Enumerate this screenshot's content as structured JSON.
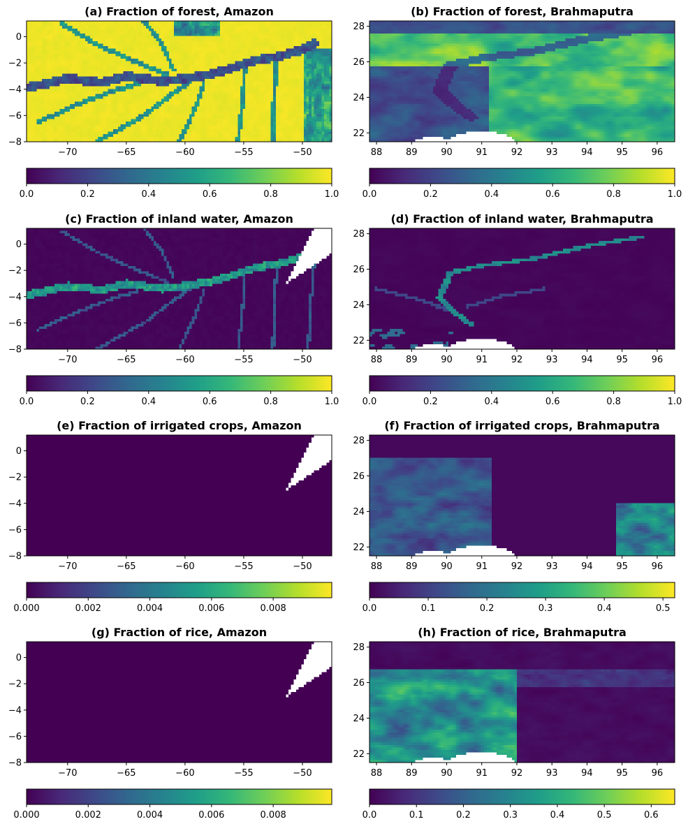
{
  "colors": {
    "viridis": [
      "#440154",
      "#482878",
      "#3e4989",
      "#31688e",
      "#26828e",
      "#1f9e89",
      "#35b779",
      "#6ece58",
      "#b5de2b",
      "#fde725"
    ],
    "land_mask": "#ffffff"
  },
  "chart_data": [
    {
      "id": "a",
      "type": "heatmap",
      "title": "(a) Fraction of forest, Amazon",
      "xlim": [
        -73.5,
        -47.5
      ],
      "ylim": [
        -8,
        1.2
      ],
      "xticks": [
        -70,
        -65,
        -60,
        -55,
        -50
      ],
      "xtick_labels": [
        "−70",
        "−65",
        "−60",
        "−55",
        "−50"
      ],
      "yticks": [
        0,
        -2,
        -4,
        -6,
        -8
      ],
      "ytick_labels": [
        "0",
        "−2",
        "−4",
        "−6",
        "−8"
      ],
      "colorbar": {
        "range": [
          0,
          1.0
        ],
        "ticks": [
          0,
          0.2,
          0.4,
          0.6,
          0.8,
          1.0
        ],
        "tick_labels": [
          "0.0",
          "0.2",
          "0.4",
          "0.6",
          "0.8",
          "1.0"
        ]
      },
      "field": "forest_amazon"
    },
    {
      "id": "b",
      "type": "heatmap",
      "title": "(b) Fraction of forest, Brahmaputra",
      "xlim": [
        87.8,
        96.5
      ],
      "ylim": [
        21.5,
        28.3
      ],
      "xticks": [
        88,
        89,
        90,
        91,
        92,
        93,
        94,
        95,
        96
      ],
      "xtick_labels": [
        "88",
        "89",
        "90",
        "91",
        "92",
        "93",
        "94",
        "95",
        "96"
      ],
      "yticks": [
        28,
        26,
        24,
        22
      ],
      "ytick_labels": [
        "28",
        "26",
        "24",
        "22"
      ],
      "colorbar": {
        "range": [
          0,
          1.0
        ],
        "ticks": [
          0,
          0.2,
          0.4,
          0.6,
          0.8,
          1.0
        ],
        "tick_labels": [
          "0.0",
          "0.2",
          "0.4",
          "0.6",
          "0.8",
          "1.0"
        ]
      },
      "field": "forest_brahmaputra"
    },
    {
      "id": "c",
      "type": "heatmap",
      "title": "(c) Fraction of inland water, Amazon",
      "xlim": [
        -73.5,
        -47.5
      ],
      "ylim": [
        -8,
        1.2
      ],
      "xticks": [
        -70,
        -65,
        -60,
        -55,
        -50
      ],
      "xtick_labels": [
        "−70",
        "−65",
        "−60",
        "−55",
        "−50"
      ],
      "yticks": [
        0,
        -2,
        -4,
        -6,
        -8
      ],
      "ytick_labels": [
        "0",
        "−2",
        "−4",
        "−6",
        "−8"
      ],
      "colorbar": {
        "range": [
          0,
          1.0
        ],
        "ticks": [
          0,
          0.2,
          0.4,
          0.6,
          0.8,
          1.0
        ],
        "tick_labels": [
          "0.0",
          "0.2",
          "0.4",
          "0.6",
          "0.8",
          "1.0"
        ]
      },
      "field": "water_amazon"
    },
    {
      "id": "d",
      "type": "heatmap",
      "title": "(d) Fraction of inland water, Brahmaputra",
      "xlim": [
        87.8,
        96.5
      ],
      "ylim": [
        21.5,
        28.3
      ],
      "xticks": [
        88,
        89,
        90,
        91,
        92,
        93,
        94,
        95,
        96
      ],
      "xtick_labels": [
        "88",
        "89",
        "90",
        "91",
        "92",
        "93",
        "94",
        "95",
        "96"
      ],
      "yticks": [
        28,
        26,
        24,
        22
      ],
      "ytick_labels": [
        "28",
        "26",
        "24",
        "22"
      ],
      "colorbar": {
        "range": [
          0,
          1.0
        ],
        "ticks": [
          0,
          0.2,
          0.4,
          0.6,
          0.8,
          1.0
        ],
        "tick_labels": [
          "0.0",
          "0.2",
          "0.4",
          "0.6",
          "0.8",
          "1.0"
        ]
      },
      "field": "water_brahmaputra"
    },
    {
      "id": "e",
      "type": "heatmap",
      "title": "(e) Fraction of irrigated crops, Amazon",
      "xlim": [
        -73.5,
        -47.5
      ],
      "ylim": [
        -8,
        1.2
      ],
      "xticks": [
        -70,
        -65,
        -60,
        -55,
        -50
      ],
      "xtick_labels": [
        "−70",
        "−65",
        "−60",
        "−55",
        "−50"
      ],
      "yticks": [
        0,
        -2,
        -4,
        -6,
        -8
      ],
      "ytick_labels": [
        "0",
        "−2",
        "−4",
        "−6",
        "−8"
      ],
      "colorbar": {
        "range": [
          0,
          0.0099
        ],
        "ticks": [
          0,
          0.002,
          0.004,
          0.006,
          0.008
        ],
        "tick_labels": [
          "0.000",
          "0.002",
          "0.004",
          "0.006",
          "0.008"
        ]
      },
      "field": "irr_amazon"
    },
    {
      "id": "f",
      "type": "heatmap",
      "title": "(f) Fraction of irrigated crops, Brahmaputra",
      "xlim": [
        87.8,
        96.5
      ],
      "ylim": [
        21.5,
        28.3
      ],
      "xticks": [
        88,
        89,
        90,
        91,
        92,
        93,
        94,
        95,
        96
      ],
      "xtick_labels": [
        "88",
        "89",
        "90",
        "91",
        "92",
        "93",
        "94",
        "95",
        "96"
      ],
      "yticks": [
        28,
        26,
        24,
        22
      ],
      "ytick_labels": [
        "28",
        "26",
        "24",
        "22"
      ],
      "colorbar": {
        "range": [
          0,
          0.52
        ],
        "ticks": [
          0,
          0.1,
          0.2,
          0.3,
          0.4,
          0.5
        ],
        "tick_labels": [
          "0.0",
          "0.1",
          "0.2",
          "0.3",
          "0.4",
          "0.5"
        ]
      },
      "field": "irr_brahmaputra"
    },
    {
      "id": "g",
      "type": "heatmap",
      "title": "(g) Fraction of rice, Amazon",
      "xlim": [
        -73.5,
        -47.5
      ],
      "ylim": [
        -8,
        1.2
      ],
      "xticks": [
        -70,
        -65,
        -60,
        -55,
        -50
      ],
      "xtick_labels": [
        "−70",
        "−65",
        "−60",
        "−55",
        "−50"
      ],
      "yticks": [
        0,
        -2,
        -4,
        -6,
        -8
      ],
      "ytick_labels": [
        "0",
        "−2",
        "−4",
        "−6",
        "−8"
      ],
      "colorbar": {
        "range": [
          0,
          0.0099
        ],
        "ticks": [
          0,
          0.002,
          0.004,
          0.006,
          0.008
        ],
        "tick_labels": [
          "0.000",
          "0.002",
          "0.004",
          "0.006",
          "0.008"
        ]
      },
      "field": "rice_amazon"
    },
    {
      "id": "h",
      "type": "heatmap",
      "title": "(h) Fraction of rice, Brahmaputra",
      "xlim": [
        87.8,
        96.5
      ],
      "ylim": [
        21.5,
        28.3
      ],
      "xticks": [
        88,
        89,
        90,
        91,
        92,
        93,
        94,
        95,
        96
      ],
      "xtick_labels": [
        "88",
        "89",
        "90",
        "91",
        "92",
        "93",
        "94",
        "95",
        "96"
      ],
      "yticks": [
        28,
        26,
        24,
        22
      ],
      "ytick_labels": [
        "28",
        "26",
        "24",
        "22"
      ],
      "colorbar": {
        "range": [
          0,
          0.65
        ],
        "ticks": [
          0,
          0.1,
          0.2,
          0.3,
          0.4,
          0.5,
          0.6
        ],
        "tick_labels": [
          "0.0",
          "0.1",
          "0.2",
          "0.3",
          "0.4",
          "0.5",
          "0.6"
        ]
      },
      "field": "rice_brahmaputra"
    }
  ]
}
